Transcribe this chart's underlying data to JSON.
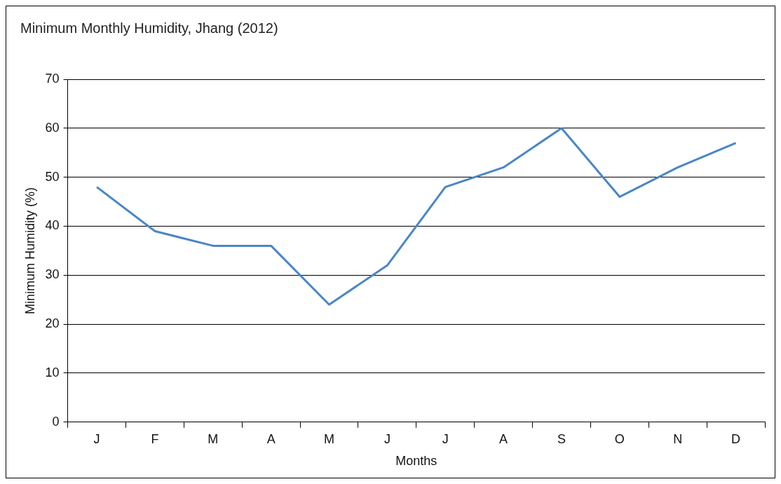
{
  "chart_data": {
    "type": "line",
    "title": "Minimum Monthly Humidity, Jhang (2012)",
    "xlabel": "Months",
    "ylabel": "Minimum Humidity (%)",
    "categories": [
      "J",
      "F",
      "M",
      "A",
      "M",
      "J",
      "J",
      "A",
      "S",
      "O",
      "N",
      "D"
    ],
    "series": [
      {
        "color": "#4a86c8",
        "values": [
          48,
          39,
          36,
          36,
          24,
          32,
          48,
          52,
          60,
          46,
          52,
          57
        ]
      }
    ],
    "ylim": [
      0,
      70
    ],
    "yticks": [
      0,
      10,
      20,
      30,
      40,
      50,
      60,
      70
    ],
    "grid": "y",
    "marker": "none",
    "line_style": "solid"
  }
}
